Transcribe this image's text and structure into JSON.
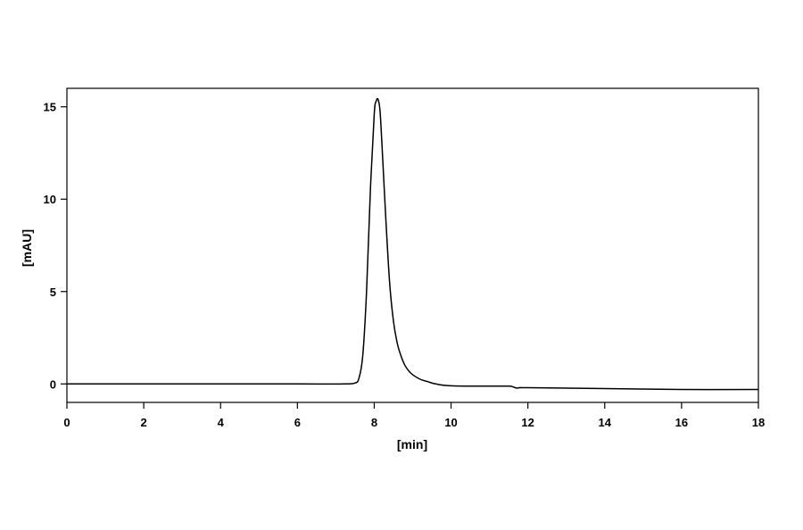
{
  "chart_data": {
    "type": "line",
    "title": "",
    "xlabel": "[min]",
    "ylabel": "[mAU]",
    "xlim": [
      0,
      18
    ],
    "ylim": [
      -1,
      16.0
    ],
    "xticks": [
      0,
      2,
      4,
      6,
      8,
      10,
      12,
      14,
      16,
      18
    ],
    "yticks": [
      0,
      5,
      10,
      15
    ],
    "grid": false,
    "legend": "none",
    "line_color": "#000000",
    "series": [
      {
        "x": [
          0,
          2,
          4,
          6,
          7.2,
          7.5,
          7.6,
          7.7,
          7.8,
          7.9,
          8.0,
          8.05,
          8.1,
          8.15,
          8.2,
          8.3,
          8.4,
          8.5,
          8.6,
          8.7,
          8.8,
          8.9,
          9.0,
          9.2,
          9.4,
          9.6,
          10.0,
          11.0,
          11.5,
          11.6,
          11.7,
          11.8,
          12.0,
          14.0,
          16.0,
          18.0
        ],
        "y": [
          0,
          0,
          0,
          0,
          0,
          0.05,
          0.3,
          1.5,
          5.0,
          10.5,
          14.6,
          15.3,
          15.4,
          14.8,
          13.0,
          9.0,
          5.5,
          3.4,
          2.2,
          1.5,
          1.0,
          0.7,
          0.5,
          0.25,
          0.12,
          0.0,
          -0.1,
          -0.12,
          -0.12,
          -0.15,
          -0.22,
          -0.2,
          -0.2,
          -0.25,
          -0.3,
          -0.3
        ]
      }
    ]
  }
}
